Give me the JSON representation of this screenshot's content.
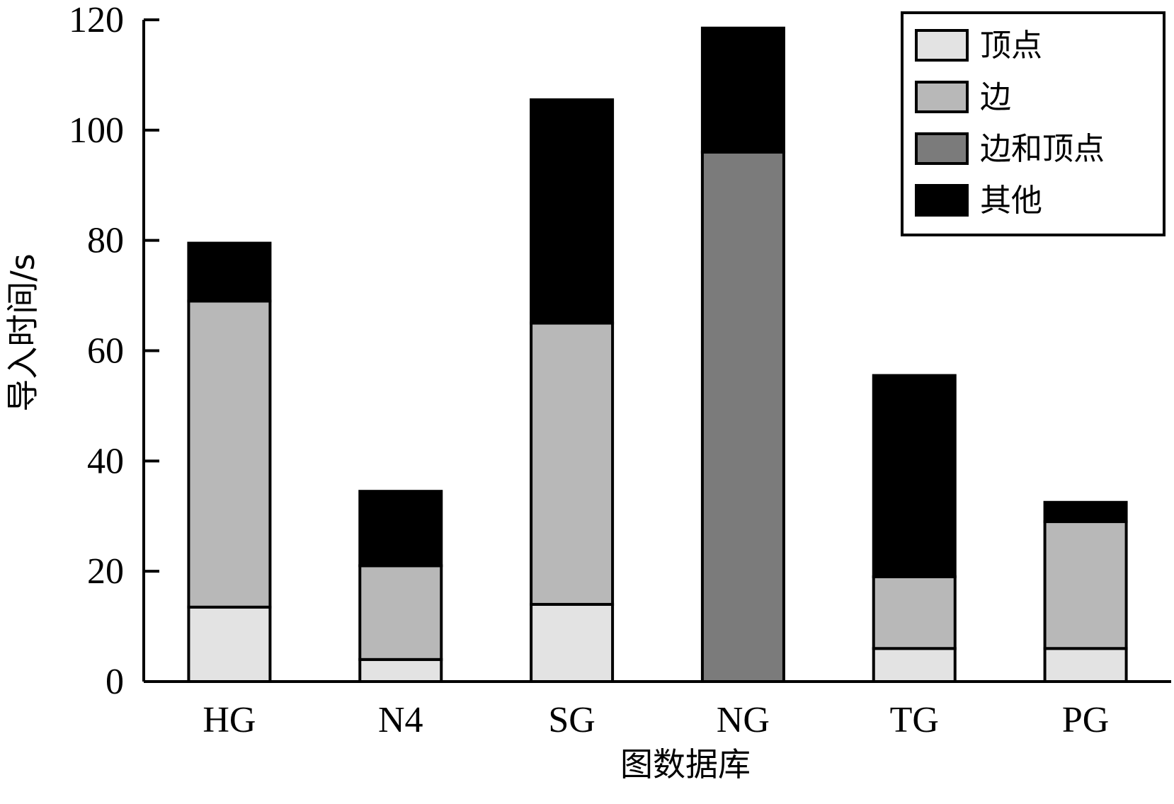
{
  "chart_data": {
    "type": "bar",
    "stacked": true,
    "title": "",
    "xlabel": "图数据库",
    "ylabel": "导入时间/s",
    "ylim": [
      0,
      120
    ],
    "yticks": [
      0,
      20,
      40,
      60,
      80,
      100,
      120
    ],
    "categories": [
      "HG",
      "N4",
      "SG",
      "NG",
      "TG",
      "PG"
    ],
    "series": [
      {
        "name": "顶点",
        "color": "#e3e3e3",
        "values": [
          13.5,
          4,
          14,
          0,
          6,
          6
        ]
      },
      {
        "name": "边",
        "color": "#b8b8b8",
        "values": [
          55.5,
          17,
          51,
          0,
          13,
          23
        ]
      },
      {
        "name": "边和顶点",
        "color": "#7b7b7b",
        "values": [
          0,
          0,
          0,
          96,
          0,
          0
        ]
      },
      {
        "name": "其他",
        "color": "#000000",
        "values": [
          10.5,
          13.5,
          40.5,
          22.5,
          36.5,
          3.5
        ]
      }
    ],
    "legend_position": "top-right",
    "grid": false
  }
}
